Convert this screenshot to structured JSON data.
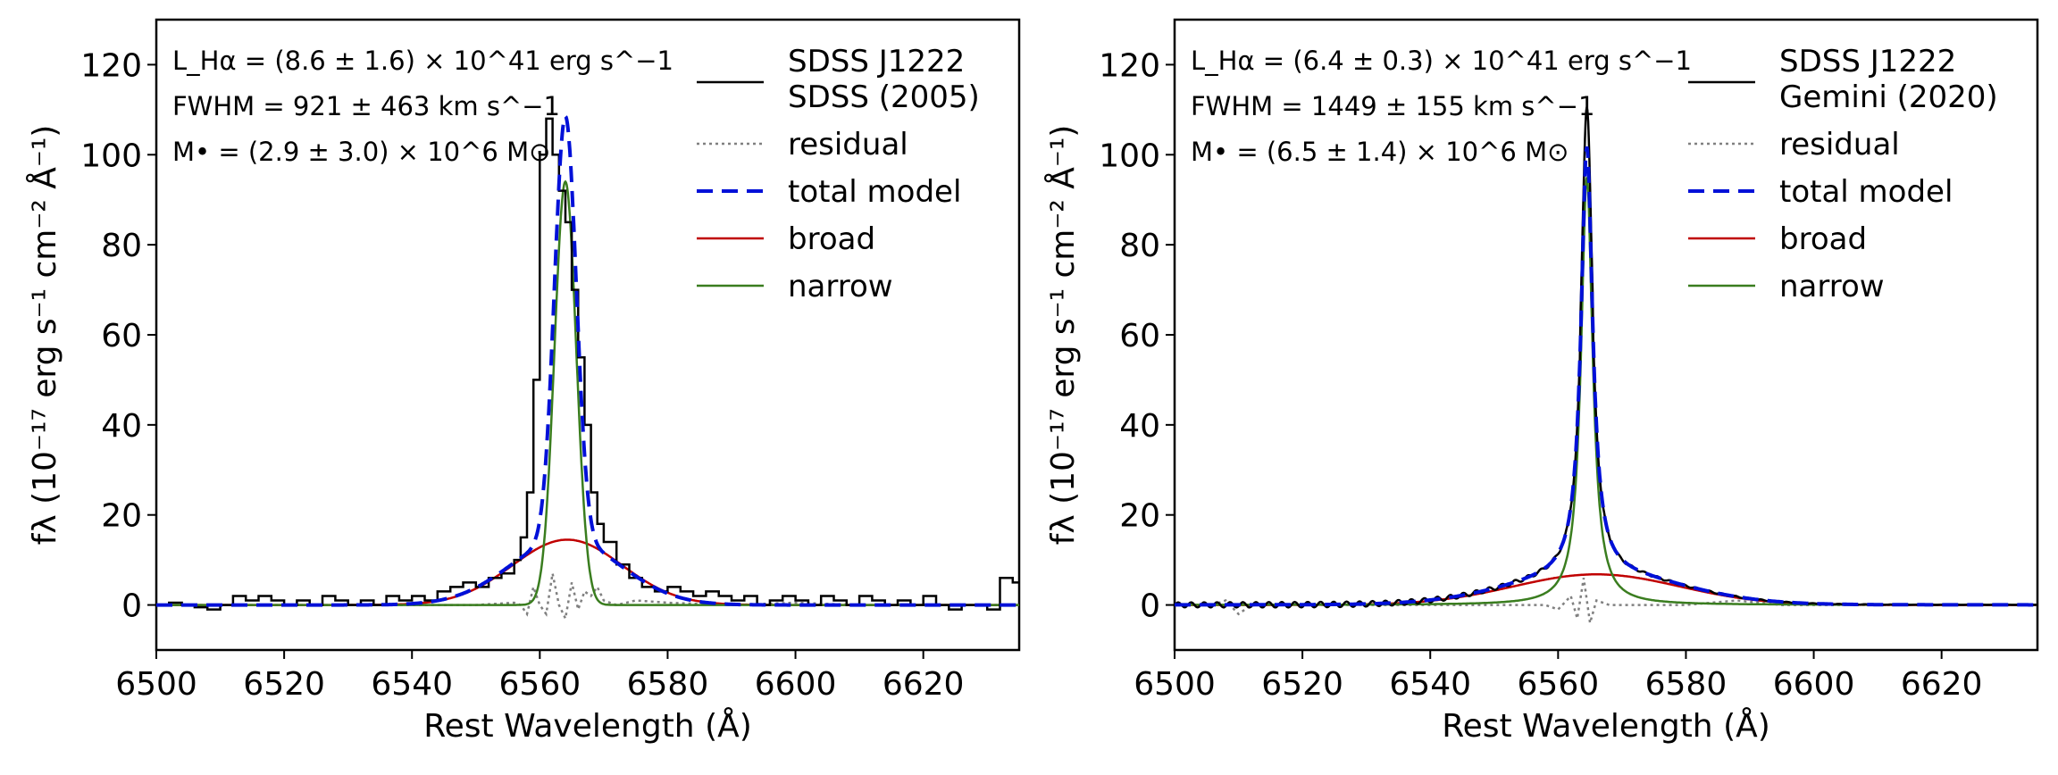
{
  "figure": {
    "width": 2304,
    "height": 864
  },
  "colors": {
    "data": "#000000",
    "residual": "#808080",
    "total": "#0010d8",
    "broad": "#c00000",
    "narrow": "#3a7d1f"
  },
  "chart_data": [
    {
      "type": "line",
      "id": "left",
      "xlabel": "Rest Wavelength (Å)",
      "ylabel": "fλ (10⁻¹⁷ erg s⁻¹ cm⁻² Å⁻¹)",
      "xlim": [
        6500,
        6635
      ],
      "ylim": [
        -10,
        130
      ],
      "xticks": [
        6500,
        6520,
        6540,
        6560,
        6580,
        6600,
        6620
      ],
      "yticks": [
        0,
        20,
        40,
        60,
        80,
        100,
        120
      ],
      "annotations": {
        "luminosity": "L_Hα = (8.6 ± 1.6) × 10^41 erg s^−1",
        "fwhm": "FWHM = 921 ± 463 km s^−1",
        "mass": "M• = (2.9 ± 3.0) × 10^6 M⊙"
      },
      "legend": {
        "data_line1": "SDSS J1222",
        "data_line2": "SDSS (2005)",
        "residual": "residual",
        "total": "total model",
        "broad": "broad",
        "narrow": "narrow"
      },
      "series": {
        "data_step": {
          "x": [
            6500,
            6502,
            6504,
            6506,
            6508,
            6510,
            6512,
            6514,
            6516,
            6518,
            6520,
            6522,
            6524,
            6526,
            6528,
            6530,
            6532,
            6534,
            6536,
            6538,
            6540,
            6542,
            6544,
            6546,
            6548,
            6550,
            6552,
            6554,
            6556,
            6557,
            6558,
            6559,
            6560,
            6561,
            6562,
            6563,
            6564,
            6565,
            6566,
            6567,
            6568,
            6569,
            6570,
            6572,
            6574,
            6576,
            6578,
            6580,
            6582,
            6584,
            6586,
            6588,
            6590,
            6592,
            6594,
            6596,
            6598,
            6600,
            6602,
            6604,
            6606,
            6608,
            6610,
            6612,
            6614,
            6616,
            6618,
            6620,
            6622,
            6624,
            6626,
            6628,
            6630,
            6632,
            6634
          ],
          "y": [
            0,
            0.5,
            0,
            -0.5,
            -1,
            0,
            2,
            1,
            2,
            1,
            0,
            1,
            0,
            2,
            1,
            0,
            1,
            0,
            2,
            1,
            2,
            1,
            3,
            4,
            5,
            4,
            6,
            7,
            10,
            15,
            25,
            50,
            100,
            108,
            100,
            92,
            85,
            70,
            55,
            40,
            25,
            18,
            14,
            9,
            6,
            4,
            3,
            4,
            3,
            2,
            3,
            2,
            1,
            2,
            0,
            1,
            2,
            1,
            0,
            2,
            1,
            0,
            2,
            1,
            0,
            1,
            0,
            2,
            0,
            -1,
            0,
            0,
            -1,
            6,
            5
          ]
        },
        "total": {
          "amp_narrow": 94,
          "center": 6564,
          "sigma_narrow": 1.7,
          "amp_broad": 14.5,
          "sigma_broad": 8.6
        },
        "broad": {
          "amp": 14.5,
          "center": 6564.3,
          "sigma": 8.6
        },
        "narrow": {
          "amp": 94,
          "center": 6564,
          "sigma": 1.7
        },
        "residual": {
          "x": [
            6500,
            6540,
            6550,
            6556,
            6557,
            6558,
            6559,
            6560,
            6561,
            6562,
            6563,
            6564,
            6565,
            6566,
            6567,
            6568,
            6569,
            6570,
            6572,
            6575,
            6580,
            6590,
            6600,
            6610,
            6620,
            6635
          ],
          "y": [
            0,
            0,
            0,
            0.5,
            0,
            -2,
            4,
            0,
            -2,
            7,
            0,
            -3,
            5,
            -1,
            3,
            2,
            4,
            1,
            0,
            1,
            0.5,
            0,
            0.5,
            0,
            0,
            0
          ]
        }
      }
    },
    {
      "type": "line",
      "id": "right",
      "xlabel": "Rest Wavelength (Å)",
      "ylabel": "fλ (10⁻¹⁷ erg s⁻¹ cm⁻² Å⁻¹)",
      "xlim": [
        6500,
        6635
      ],
      "ylim": [
        -10,
        130
      ],
      "xticks": [
        6500,
        6520,
        6540,
        6560,
        6580,
        6600,
        6620
      ],
      "yticks": [
        0,
        20,
        40,
        60,
        80,
        100,
        120
      ],
      "annotations": {
        "luminosity": "L_Hα = (6.4 ± 0.3) × 10^41 erg s^−1",
        "fwhm": "FWHM = 1449 ± 155 km s^−1",
        "mass": "M• = (6.5 ± 1.4) × 10^6 M⊙"
      },
      "legend": {
        "data_line1": "SDSS J1222",
        "data_line2": "Gemini (2020)",
        "residual": "residual",
        "total": "total model",
        "broad": "broad",
        "narrow": "narrow"
      },
      "series": {
        "total": {
          "amp_narrow": 95,
          "center": 6564.5,
          "gamma_narrow": 1.1,
          "amp_broad": 6.8,
          "sigma_broad": 13
        },
        "broad": {
          "amp": 6.8,
          "center": 6566,
          "sigma": 13
        },
        "narrow": {
          "amp": 95,
          "center": 6564.5,
          "gamma": 1.1
        },
        "residual": {
          "x": [
            6500,
            6506,
            6508,
            6510,
            6512,
            6540,
            6558,
            6560,
            6562,
            6563,
            6564,
            6565,
            6566,
            6568,
            6570,
            6580,
            6588,
            6595,
            6610,
            6635
          ],
          "y": [
            0,
            0,
            1,
            -2,
            0,
            0,
            0,
            -1,
            2,
            -3,
            6,
            -4,
            1,
            0,
            0,
            0,
            1,
            0,
            0,
            0
          ]
        }
      }
    }
  ]
}
